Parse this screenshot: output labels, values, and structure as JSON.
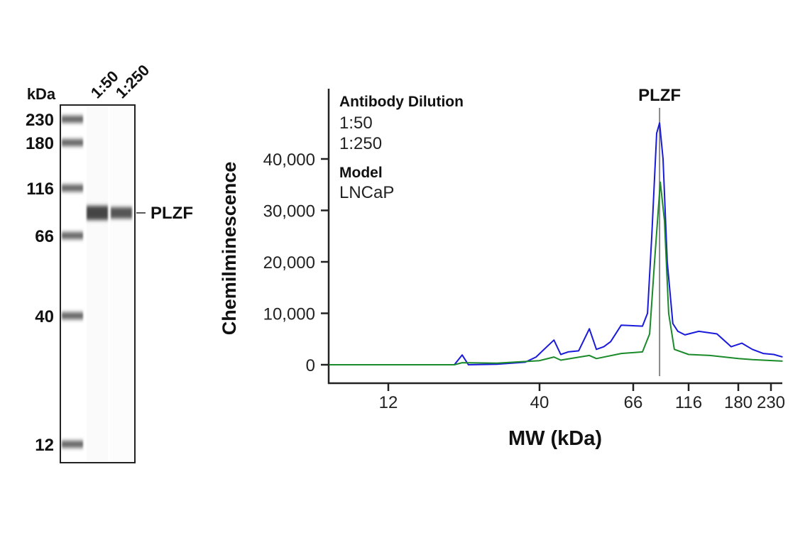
{
  "blot": {
    "unit_label": "kDa",
    "lane_labels": [
      "1:50",
      "1:250"
    ],
    "ladder": [
      {
        "label": "230",
        "kda": 230
      },
      {
        "label": "180",
        "kda": 180
      },
      {
        "label": "116",
        "kda": 116
      },
      {
        "label": "66",
        "kda": 66
      },
      {
        "label": "40",
        "kda": 40
      },
      {
        "label": "12",
        "kda": 12
      }
    ],
    "band_label": "PLZF"
  },
  "chart_data": {
    "type": "line",
    "title": "PLZF",
    "xlabel": "MW (kDa)",
    "ylabel": "Chemilminescence",
    "x_scale": "log",
    "xlim": [
      7.5,
      251
    ],
    "ylim": [
      0,
      50000
    ],
    "x_ticks": [
      12,
      40,
      66,
      116,
      180,
      230
    ],
    "x_tick_labels": [
      "12",
      "40",
      "66",
      "116",
      "180",
      "230"
    ],
    "y_ticks": [
      0,
      10000,
      20000,
      30000,
      40000
    ],
    "y_tick_labels": [
      "0",
      "10,000",
      "20,000",
      "30,000",
      "40,000"
    ],
    "grid": false,
    "marker_line_kda": 86.3,
    "legend": {
      "position": "top-left",
      "title": "Antibody Dilution",
      "model_title": "Model",
      "model_value": "LNCaP"
    },
    "series": [
      {
        "name": "1:50",
        "color": "#1a1adb",
        "points": [
          [
            7.5,
            0
          ],
          [
            20.3,
            0
          ],
          [
            21.6,
            1900
          ],
          [
            22.7,
            0
          ],
          [
            28.5,
            100
          ],
          [
            35.7,
            500
          ],
          [
            38.9,
            1500
          ],
          [
            43.2,
            4800
          ],
          [
            44.8,
            2000
          ],
          [
            46.6,
            2500
          ],
          [
            49.3,
            2700
          ],
          [
            52.2,
            7000
          ],
          [
            54.2,
            3000
          ],
          [
            56.4,
            3500
          ],
          [
            58.5,
            4500
          ],
          [
            61.9,
            7700
          ],
          [
            72.5,
            7500
          ],
          [
            76.3,
            10000
          ],
          [
            79.7,
            25000
          ],
          [
            83.8,
            45000
          ],
          [
            86.3,
            47000
          ],
          [
            89.4,
            40000
          ],
          [
            93.3,
            20000
          ],
          [
            98.8,
            8000
          ],
          [
            104,
            6500
          ],
          [
            111.7,
            5800
          ],
          [
            127,
            6500
          ],
          [
            149,
            6000
          ],
          [
            169,
            3500
          ],
          [
            185,
            4200
          ],
          [
            200,
            3000
          ],
          [
            217,
            2200
          ],
          [
            235,
            2000
          ],
          [
            251,
            1500
          ]
        ]
      },
      {
        "name": "1:250",
        "color": "#1a8a2a",
        "points": [
          [
            7.5,
            0
          ],
          [
            20.3,
            0
          ],
          [
            21.6,
            400
          ],
          [
            28.5,
            300
          ],
          [
            40,
            800
          ],
          [
            43.2,
            1500
          ],
          [
            44.8,
            900
          ],
          [
            52.2,
            1800
          ],
          [
            54.2,
            1200
          ],
          [
            61.9,
            2200
          ],
          [
            72.5,
            2500
          ],
          [
            78,
            6000
          ],
          [
            82,
            20000
          ],
          [
            86.9,
            35500
          ],
          [
            90.7,
            28000
          ],
          [
            94.7,
            10000
          ],
          [
            100.3,
            3000
          ],
          [
            116,
            2000
          ],
          [
            140,
            1800
          ],
          [
            180,
            1200
          ],
          [
            200,
            1000
          ],
          [
            251,
            700
          ]
        ]
      }
    ]
  }
}
